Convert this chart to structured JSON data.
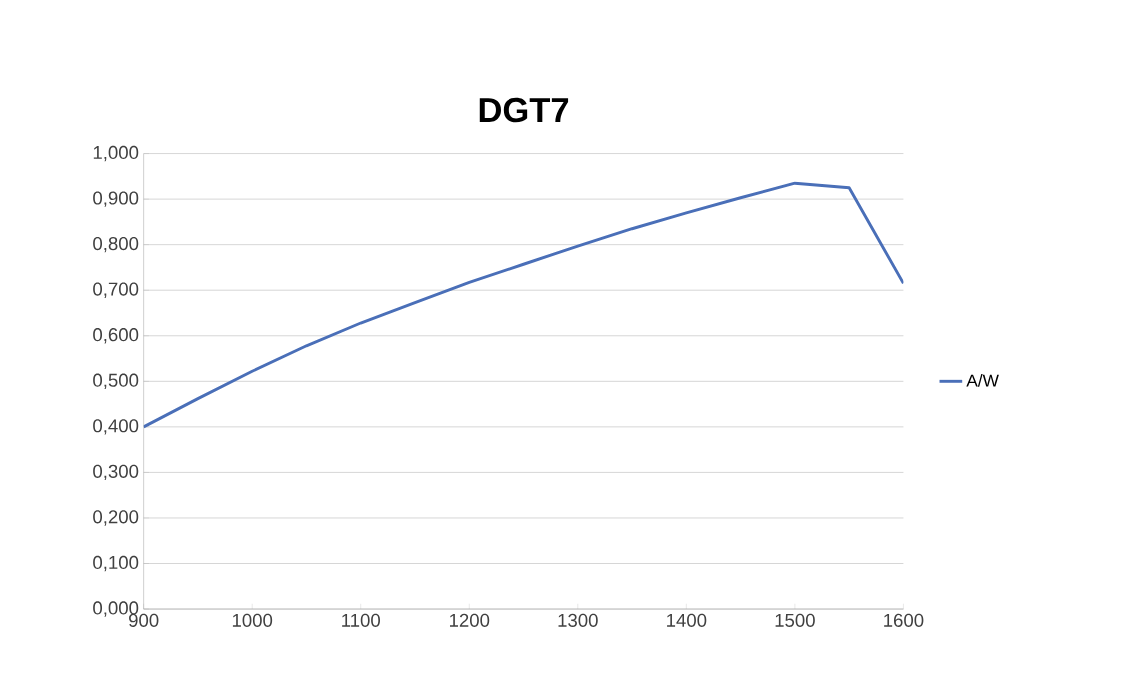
{
  "chart_data": {
    "type": "line",
    "title": "DGT7",
    "x": [
      900,
      950,
      1000,
      1050,
      1100,
      1150,
      1200,
      1250,
      1300,
      1350,
      1400,
      1450,
      1500,
      1550,
      1600
    ],
    "series": [
      {
        "name": "A/W",
        "color": "#4a6fb8",
        "values": [
          0.4,
          0.462,
          0.522,
          0.578,
          0.628,
          0.673,
          0.717,
          0.757,
          0.797,
          0.835,
          0.87,
          0.903,
          0.935,
          0.925,
          0.715
        ]
      }
    ],
    "xlim": [
      900,
      1600
    ],
    "xticks": [
      900,
      1000,
      1100,
      1200,
      1300,
      1400,
      1500,
      1600
    ],
    "ylim": [
      0,
      1
    ],
    "yticks": [
      {
        "value": 0,
        "label": "0,000"
      },
      {
        "value": 0.1,
        "label": "0,100"
      },
      {
        "value": 0.2,
        "label": "0,200"
      },
      {
        "value": 0.3,
        "label": "0,300"
      },
      {
        "value": 0.4,
        "label": "0,400"
      },
      {
        "value": 0.5,
        "label": "0,500"
      },
      {
        "value": 0.6,
        "label": "0,600"
      },
      {
        "value": 0.7,
        "label": "0,700"
      },
      {
        "value": 0.8,
        "label": "0,800"
      },
      {
        "value": 0.9,
        "label": "0,900"
      },
      {
        "value": 1,
        "label": "1,000"
      }
    ],
    "grid": "y",
    "legend": "right",
    "marker": "none",
    "line_style": "solid"
  }
}
